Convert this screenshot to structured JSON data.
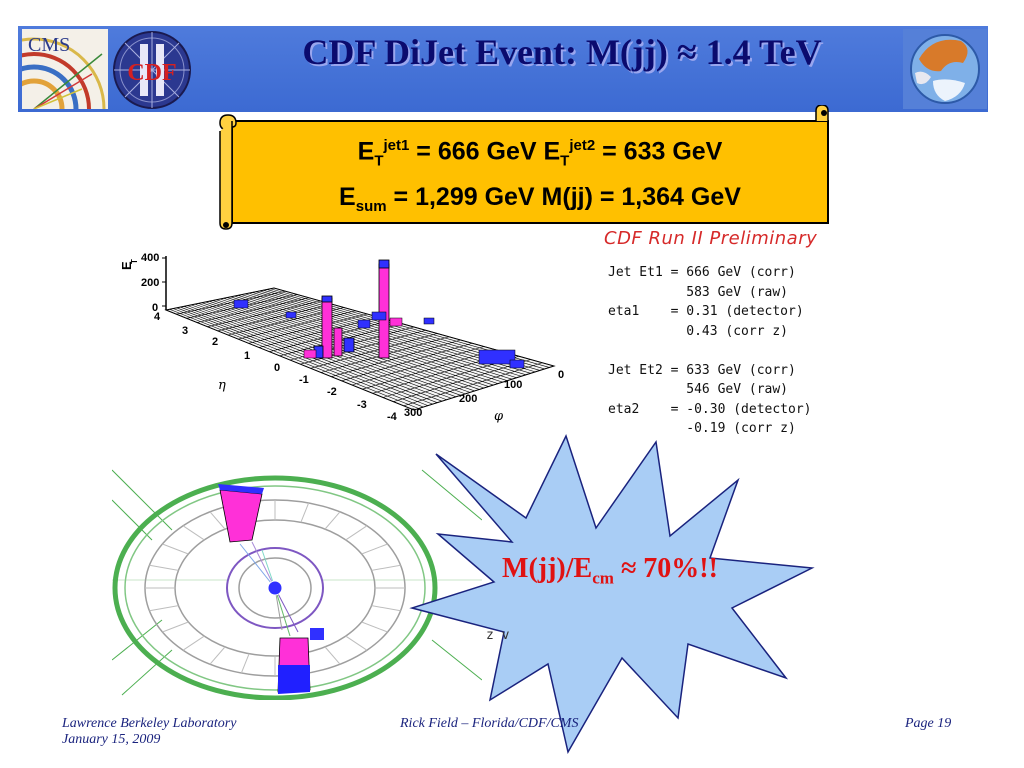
{
  "slide": {
    "title": "CDF DiJet Event: M(jj) ≈ 1.4 TeV",
    "logos": {
      "left_text": "CMS",
      "cdf_text": "CDF"
    }
  },
  "scroll": {
    "line1": {
      "e": "E",
      "t1": "T",
      "jet1": "jet1",
      "val1": " = 666 GeV ",
      "e2": "E",
      "t2": "T",
      "jet2": "jet2",
      "val2": " = 633 GeV"
    },
    "line2": {
      "e": "E",
      "sum": "sum",
      "val": " = 1,299 GeV M(jj) = 1,364 GeV"
    }
  },
  "lego_plot": {
    "y_axis_label": "E",
    "y_axis_sub": "T",
    "y_ticks": [
      "400",
      "200",
      "0"
    ],
    "eta_ticks": [
      "4",
      "3",
      "2",
      "1",
      "0",
      "-1",
      "-2",
      "-3",
      "-4"
    ],
    "eta_label": "η",
    "phi_ticks": [
      "300",
      "200",
      "100",
      "0"
    ],
    "phi_label": "φ"
  },
  "event_info": {
    "heading": "CDF Run II Preliminary",
    "lines": [
      "Jet Et1 = 666 GeV (corr)",
      "          583 GeV (raw)",
      "eta1    = 0.31 (detector)",
      "          0.43 (corr z)",
      "",
      "Jet Et2 = 633 GeV (corr)",
      "          546 GeV (raw)",
      "eta2    = -0.30 (detector)",
      "          -0.19 (corr z)"
    ]
  },
  "star": {
    "main": "M(jj)/E",
    "sub": "cm",
    "tail": " ≈ 70%!!",
    "partial_text": "z v"
  },
  "footer": {
    "left_line1": "Lawrence Berkeley Laboratory",
    "left_line2": "January 15, 2009",
    "center": "Rick Field – Florida/CDF/CMS",
    "right": "Page 19"
  }
}
